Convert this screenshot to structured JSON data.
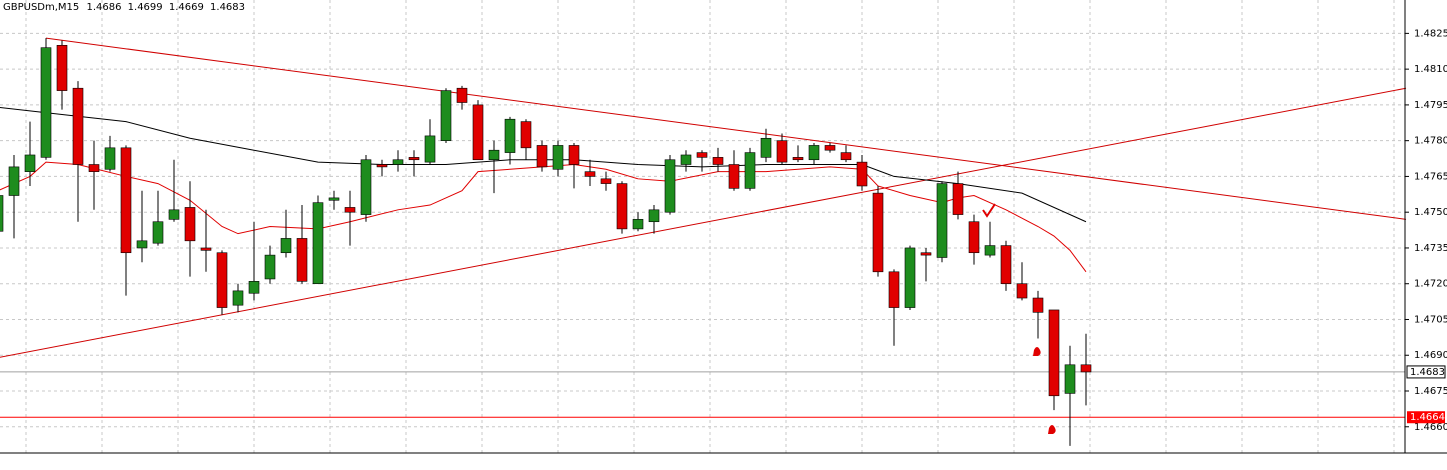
{
  "chart_data": {
    "type": "candlestick",
    "symbol": "GBPUSDm,M15",
    "ylim": [
      1.4649,
      1.4839
    ],
    "yticks": [
      1.4825,
      {
        "value": 1.481,
        "label": "1.4810"
      },
      1.4795,
      {
        "value": 1.478,
        "label": "1.4780"
      },
      1.4765,
      {
        "value": 1.475,
        "label": "1.4750"
      },
      1.4735,
      {
        "value": 1.472,
        "label": "1.4720"
      },
      1.4705,
      {
        "value": 1.469,
        "label": "1.4690"
      },
      1.4675,
      {
        "value": 1.466,
        "label": "1.4660"
      }
    ],
    "grid": true,
    "up_color": "#1e8c1e",
    "down_color": "#e00000",
    "open": [
      1.4742,
      1.4757,
      1.4767,
      1.4773,
      1.482,
      1.4802,
      1.477,
      1.4768,
      1.4777,
      1.4735,
      1.4737,
      1.4747,
      1.4752,
      1.4735,
      1.4733,
      1.4711,
      1.4716,
      1.4722,
      1.4733,
      1.4739,
      1.472,
      1.4755,
      1.4752,
      1.4749,
      1.477,
      1.477,
      1.4773,
      1.4771,
      1.478,
      1.4802,
      1.4795,
      1.4772,
      1.4775,
      1.4788,
      1.4778,
      1.4768,
      1.4778,
      1.4767,
      1.4764,
      1.4762,
      1.4743,
      1.4746,
      1.475,
      1.477,
      1.4775,
      1.4773,
      1.477,
      1.476,
      1.4773,
      1.478,
      1.4773,
      1.4772,
      1.4778,
      1.4775,
      1.4771,
      1.4758,
      1.4725,
      1.471,
      1.4733,
      1.4731,
      1.4762,
      1.4746,
      1.4732,
      1.4736,
      1.472,
      1.4714,
      1.4709,
      1.4674,
      1.4686
    ],
    "high": [
      1.4761,
      1.4774,
      1.4788,
      1.4823,
      1.4822,
      1.4805,
      1.478,
      1.4782,
      1.4778,
      1.4759,
      1.4759,
      1.4772,
      1.4763,
      1.4751,
      1.4734,
      1.472,
      1.4746,
      1.4736,
      1.4751,
      1.4753,
      1.4757,
      1.4759,
      1.4759,
      1.4774,
      1.4772,
      1.4776,
      1.4776,
      1.4789,
      1.4802,
      1.4803,
      1.4797,
      1.478,
      1.479,
      1.4789,
      1.478,
      1.478,
      1.4779,
      1.4772,
      1.4767,
      1.4763,
      1.475,
      1.4753,
      1.4774,
      1.4776,
      1.4776,
      1.4777,
      1.4776,
      1.4777,
      1.4785,
      1.4783,
      1.4778,
      1.4779,
      1.4779,
      1.4778,
      1.4774,
      1.4761,
      1.4726,
      1.4736,
      1.4735,
      1.4763,
      1.4767,
      1.4749,
      1.4746,
      1.4738,
      1.4729,
      1.4717,
      1.4709,
      1.4694,
      1.4699
    ],
    "low": [
      1.474,
      1.4739,
      1.4761,
      1.4772,
      1.4793,
      1.4746,
      1.4751,
      1.4767,
      1.4715,
      1.4729,
      1.4736,
      1.4746,
      1.4723,
      1.4725,
      1.4707,
      1.4708,
      1.4713,
      1.472,
      1.4731,
      1.472,
      1.472,
      1.4751,
      1.4736,
      1.4746,
      1.4765,
      1.4767,
      1.4765,
      1.477,
      1.4779,
      1.4793,
      1.4772,
      1.4758,
      1.477,
      1.4772,
      1.4767,
      1.4765,
      1.476,
      1.4761,
      1.4759,
      1.4741,
      1.4742,
      1.4741,
      1.4749,
      1.4767,
      1.4767,
      1.4767,
      1.4759,
      1.4759,
      1.4771,
      1.477,
      1.4771,
      1.477,
      1.4775,
      1.4771,
      1.4759,
      1.4723,
      1.4694,
      1.4709,
      1.4721,
      1.4729,
      1.4747,
      1.4728,
      1.4731,
      1.4717,
      1.4713,
      1.4697,
      1.4667,
      1.4652,
      1.4669
    ],
    "close": [
      1.4757,
      1.4769,
      1.4774,
      1.4819,
      1.4801,
      1.477,
      1.4767,
      1.4777,
      1.4733,
      1.4738,
      1.4746,
      1.4751,
      1.4738,
      1.4734,
      1.471,
      1.4717,
      1.4721,
      1.4732,
      1.4739,
      1.4721,
      1.4754,
      1.4756,
      1.475,
      1.4772,
      1.4769,
      1.4772,
      1.4772,
      1.4782,
      1.4801,
      1.4796,
      1.4772,
      1.4776,
      1.4789,
      1.4777,
      1.4769,
      1.4778,
      1.477,
      1.4765,
      1.4762,
      1.4743,
      1.4747,
      1.4751,
      1.4772,
      1.4774,
      1.4773,
      1.477,
      1.476,
      1.4775,
      1.4781,
      1.4771,
      1.4772,
      1.4778,
      1.4776,
      1.4772,
      1.4761,
      1.4725,
      1.471,
      1.4735,
      1.4732,
      1.4762,
      1.4749,
      1.4733,
      1.4736,
      1.472,
      1.4714,
      1.4708,
      1.4673,
      1.4686,
      1.4683
    ],
    "series": [
      {
        "color": "#000000",
        "x": [
          0,
          4,
          8,
          12,
          16,
          20,
          24,
          28,
          32,
          36,
          40,
          44,
          48,
          52,
          54,
          56,
          60,
          64,
          68
        ],
        "values": [
          1.4794,
          1.4791,
          1.4788,
          1.4781,
          1.4776,
          1.4771,
          1.477,
          1.477,
          1.4772,
          1.4772,
          1.477,
          1.4769,
          1.477,
          1.477,
          1.477,
          1.4765,
          1.4762,
          1.4758,
          1.4746
        ]
      },
      {
        "color": "#e00000",
        "x": [
          0,
          2,
          3,
          5,
          8,
          10,
          12,
          14,
          15,
          17,
          20,
          22,
          25,
          27,
          29,
          30,
          32,
          36,
          38,
          40,
          42,
          45,
          48,
          52,
          54,
          55,
          57,
          59,
          60,
          61,
          63,
          65,
          66,
          67,
          68
        ],
        "values": [
          1.4759,
          1.4765,
          1.4771,
          1.477,
          1.4765,
          1.4762,
          1.4755,
          1.4744,
          1.4741,
          1.4744,
          1.4743,
          1.4746,
          1.4751,
          1.4753,
          1.4759,
          1.4767,
          1.4768,
          1.477,
          1.4768,
          1.4764,
          1.4763,
          1.4767,
          1.4767,
          1.4769,
          1.4768,
          1.4761,
          1.4757,
          1.4754,
          1.4756,
          1.4757,
          1.4751,
          1.4744,
          1.474,
          1.4734,
          1.4725
        ]
      }
    ],
    "trendlines": [
      {
        "color": "#d00000",
        "x": [
          3,
          88
        ],
        "values": [
          1.4823,
          1.4747
        ]
      },
      {
        "color": "#d00000",
        "x": [
          0,
          88
        ],
        "values": [
          1.4689,
          1.4802
        ]
      }
    ],
    "level": {
      "value": 1.4664,
      "color": "#ff0000"
    }
  }
}
